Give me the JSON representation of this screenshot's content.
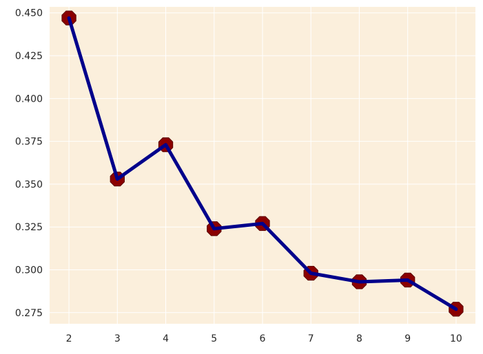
{
  "chart_data": {
    "type": "line",
    "x": [
      2,
      3,
      4,
      5,
      6,
      7,
      8,
      9,
      10
    ],
    "series": [
      {
        "values": [
          0.447,
          0.353,
          0.373,
          0.324,
          0.327,
          0.298,
          0.293,
          0.294,
          0.277
        ]
      }
    ],
    "xticks": [
      "2",
      "3",
      "4",
      "5",
      "6",
      "7",
      "8",
      "9",
      "10"
    ],
    "yticks": [
      "0.275",
      "0.300",
      "0.325",
      "0.350",
      "0.375",
      "0.400",
      "0.425",
      "0.450"
    ],
    "ylim": [
      0.2685,
      0.4535
    ],
    "xlim": [
      1.6,
      10.4
    ],
    "grid": true,
    "title": "",
    "xlabel": "",
    "ylabel": "",
    "colors": {
      "background": "#fbefdc",
      "grid": "#ffffff",
      "line": "#00008b",
      "marker": "#8b0000"
    }
  }
}
